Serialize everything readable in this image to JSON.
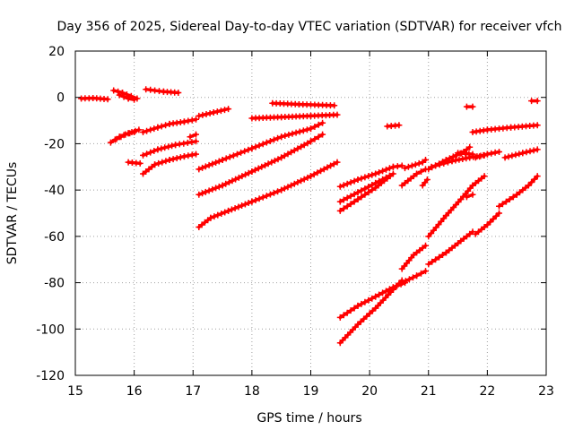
{
  "chart_data": {
    "type": "scatter",
    "title": "Day 356 of 2025, Sidereal Day-to-day VTEC variation (SDTVAR) for receiver vfch",
    "xlabel": "GPS time / hours",
    "ylabel": "SDTVAR / TECUs",
    "xlim": [
      15,
      23
    ],
    "ylim": [
      -120,
      20
    ],
    "xticks": [
      "15",
      "16",
      "17",
      "18",
      "19",
      "20",
      "21",
      "22",
      "23"
    ],
    "yticks": [
      "20",
      "0",
      "-20",
      "-40",
      "-60",
      "-80",
      "-100",
      "-120"
    ],
    "grid": true,
    "color": "#ff0000",
    "series": [
      {
        "name": "s1",
        "points": [
          [
            15.1,
            -0.5
          ],
          [
            15.3,
            -0.3
          ],
          [
            15.55,
            -0.8
          ]
        ]
      },
      {
        "name": "s2",
        "points": [
          [
            15.65,
            3
          ],
          [
            15.8,
            2
          ],
          [
            15.95,
            0.5
          ],
          [
            16.05,
            -0.5
          ]
        ]
      },
      {
        "name": "s3",
        "points": [
          [
            15.75,
            1
          ],
          [
            15.9,
            -0.5
          ],
          [
            16.0,
            -1
          ]
        ]
      },
      {
        "name": "s4",
        "points": [
          [
            16.2,
            3.5
          ],
          [
            16.5,
            2.5
          ],
          [
            16.75,
            2
          ]
        ]
      },
      {
        "name": "s5",
        "points": [
          [
            15.6,
            -19.5
          ],
          [
            15.75,
            -17
          ],
          [
            15.9,
            -15.5
          ],
          [
            16.08,
            -14
          ]
        ]
      },
      {
        "name": "s6",
        "points": [
          [
            15.7,
            -18
          ],
          [
            15.85,
            -16
          ],
          [
            16.0,
            -15
          ]
        ]
      },
      {
        "name": "s7",
        "points": [
          [
            15.9,
            -28
          ],
          [
            16.1,
            -28.5
          ]
        ]
      },
      {
        "name": "s8",
        "points": [
          [
            16.15,
            -15
          ],
          [
            16.4,
            -13
          ],
          [
            16.6,
            -11.5
          ],
          [
            16.85,
            -10.5
          ],
          [
            17.05,
            -9.5
          ]
        ]
      },
      {
        "name": "s9",
        "points": [
          [
            16.15,
            -25
          ],
          [
            16.4,
            -22.5
          ],
          [
            16.7,
            -20.5
          ],
          [
            17.05,
            -19
          ]
        ]
      },
      {
        "name": "s10",
        "points": [
          [
            16.15,
            -33
          ],
          [
            16.35,
            -29
          ],
          [
            16.6,
            -27
          ],
          [
            16.85,
            -25.5
          ],
          [
            17.05,
            -24.5
          ]
        ]
      },
      {
        "name": "s11",
        "points": [
          [
            16.95,
            -17
          ],
          [
            17.05,
            -16
          ]
        ]
      },
      {
        "name": "s12",
        "points": [
          [
            17.1,
            -8
          ],
          [
            17.35,
            -6.5
          ],
          [
            17.6,
            -5
          ]
        ]
      },
      {
        "name": "s13",
        "points": [
          [
            18.0,
            -9
          ],
          [
            18.5,
            -8.5
          ],
          [
            19.0,
            -8
          ],
          [
            19.45,
            -7.5
          ]
        ]
      },
      {
        "name": "s14",
        "points": [
          [
            18.35,
            -2.5
          ],
          [
            18.8,
            -3
          ],
          [
            19.4,
            -3.5
          ]
        ]
      },
      {
        "name": "s15",
        "points": [
          [
            17.1,
            -31
          ],
          [
            17.5,
            -27
          ],
          [
            18.0,
            -22
          ],
          [
            18.5,
            -17
          ],
          [
            19.0,
            -13.5
          ],
          [
            19.2,
            -11
          ]
        ]
      },
      {
        "name": "s16",
        "points": [
          [
            17.1,
            -42
          ],
          [
            17.5,
            -38
          ],
          [
            18.0,
            -32
          ],
          [
            18.5,
            -26
          ],
          [
            19.0,
            -19
          ],
          [
            19.2,
            -16
          ]
        ]
      },
      {
        "name": "s17",
        "points": [
          [
            17.1,
            -56
          ],
          [
            17.3,
            -52
          ],
          [
            17.6,
            -49
          ],
          [
            18.0,
            -45
          ],
          [
            18.5,
            -40
          ],
          [
            19.0,
            -34
          ],
          [
            19.45,
            -28
          ]
        ]
      },
      {
        "name": "s18",
        "points": [
          [
            19.5,
            -38.5
          ],
          [
            19.8,
            -35.5
          ],
          [
            20.1,
            -33
          ],
          [
            20.4,
            -30
          ],
          [
            20.55,
            -29.5
          ]
        ]
      },
      {
        "name": "s19",
        "points": [
          [
            19.5,
            -45
          ],
          [
            19.8,
            -41
          ],
          [
            20.1,
            -37
          ],
          [
            20.4,
            -33
          ]
        ]
      },
      {
        "name": "s20",
        "points": [
          [
            19.5,
            -49
          ],
          [
            19.8,
            -44
          ],
          [
            20.1,
            -39
          ],
          [
            20.35,
            -34
          ]
        ]
      },
      {
        "name": "s21",
        "points": [
          [
            20.3,
            -12.5
          ],
          [
            20.5,
            -12
          ]
        ]
      },
      {
        "name": "s22",
        "points": [
          [
            20.55,
            -38
          ],
          [
            20.8,
            -33
          ],
          [
            20.95,
            -31
          ]
        ]
      },
      {
        "name": "s23",
        "points": [
          [
            20.6,
            -30.5
          ],
          [
            20.9,
            -28
          ],
          [
            20.95,
            -27
          ]
        ]
      },
      {
        "name": "s24",
        "points": [
          [
            20.9,
            -38
          ],
          [
            20.98,
            -35.5
          ]
        ]
      },
      {
        "name": "s25",
        "points": [
          [
            19.5,
            -95
          ],
          [
            19.8,
            -90
          ],
          [
            20.1,
            -86
          ],
          [
            20.4,
            -82
          ],
          [
            20.6,
            -80
          ]
        ]
      },
      {
        "name": "s26",
        "points": [
          [
            19.5,
            -106
          ],
          [
            19.8,
            -98
          ],
          [
            20.1,
            -91
          ],
          [
            20.4,
            -83
          ],
          [
            20.55,
            -79
          ]
        ]
      },
      {
        "name": "s27",
        "points": [
          [
            20.55,
            -74
          ],
          [
            20.75,
            -68
          ],
          [
            20.95,
            -64
          ]
        ]
      },
      {
        "name": "s28",
        "points": [
          [
            20.55,
            -80
          ],
          [
            20.8,
            -77
          ],
          [
            20.95,
            -75
          ]
        ]
      },
      {
        "name": "s29",
        "points": [
          [
            21.0,
            -31
          ],
          [
            21.3,
            -27
          ],
          [
            21.6,
            -23.5
          ],
          [
            21.7,
            -21.5
          ]
        ]
      },
      {
        "name": "s30",
        "points": [
          [
            21.05,
            -30
          ],
          [
            21.4,
            -27.5
          ],
          [
            21.7,
            -26
          ],
          [
            21.95,
            -25
          ]
        ]
      },
      {
        "name": "s31",
        "points": [
          [
            21.5,
            -24
          ],
          [
            21.75,
            -24.5
          ]
        ]
      },
      {
        "name": "s32",
        "points": [
          [
            21.8,
            -26
          ],
          [
            22.0,
            -24.5
          ],
          [
            22.2,
            -23.5
          ]
        ]
      },
      {
        "name": "s33",
        "points": [
          [
            21.65,
            -4
          ],
          [
            21.75,
            -4
          ]
        ]
      },
      {
        "name": "s34",
        "points": [
          [
            21.75,
            -15
          ],
          [
            22.0,
            -14
          ],
          [
            22.4,
            -13
          ],
          [
            22.85,
            -12
          ]
        ]
      },
      {
        "name": "s35",
        "points": [
          [
            22.3,
            -26
          ],
          [
            22.6,
            -24
          ],
          [
            22.85,
            -22.5
          ]
        ]
      },
      {
        "name": "s36",
        "points": [
          [
            22.75,
            -1.5
          ],
          [
            22.85,
            -1.5
          ]
        ]
      },
      {
        "name": "s37",
        "points": [
          [
            21.0,
            -60
          ],
          [
            21.3,
            -51
          ],
          [
            21.55,
            -44
          ],
          [
            21.75,
            -38
          ],
          [
            21.95,
            -34
          ]
        ]
      },
      {
        "name": "s38",
        "points": [
          [
            21.0,
            -72
          ],
          [
            21.3,
            -67
          ],
          [
            21.55,
            -62
          ],
          [
            21.75,
            -58
          ]
        ]
      },
      {
        "name": "s39",
        "points": [
          [
            21.8,
            -59
          ],
          [
            22.0,
            -55
          ],
          [
            22.2,
            -50
          ]
        ]
      },
      {
        "name": "s40",
        "points": [
          [
            22.2,
            -47
          ],
          [
            22.5,
            -42
          ],
          [
            22.7,
            -38
          ],
          [
            22.85,
            -34
          ]
        ]
      },
      {
        "name": "s41",
        "points": [
          [
            21.65,
            -43
          ],
          [
            21.75,
            -42
          ]
        ]
      }
    ]
  }
}
